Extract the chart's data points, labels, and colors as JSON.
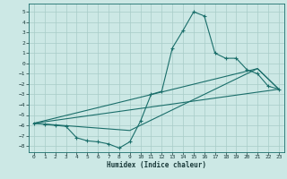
{
  "xlabel": "Humidex (Indice chaleur)",
  "bg_color": "#cce8e5",
  "line_color": "#1a6e6a",
  "grid_color": "#a8ccc8",
  "xlim": [
    -0.5,
    23.5
  ],
  "ylim": [
    -8.6,
    5.8
  ],
  "yticks": [
    5,
    4,
    3,
    2,
    1,
    0,
    -1,
    -2,
    -3,
    -4,
    -5,
    -6,
    -7,
    -8
  ],
  "xticks": [
    0,
    1,
    2,
    3,
    4,
    5,
    6,
    7,
    8,
    9,
    10,
    11,
    12,
    13,
    14,
    15,
    16,
    17,
    18,
    19,
    20,
    21,
    22,
    23
  ],
  "series1_x": [
    0,
    1,
    2,
    3,
    4,
    5,
    6,
    7,
    8,
    9,
    10,
    11,
    12,
    13,
    14,
    15,
    16,
    17,
    18,
    19,
    20,
    21,
    22,
    23
  ],
  "series1_y": [
    -5.8,
    -5.9,
    -6.0,
    -6.1,
    -7.2,
    -7.5,
    -7.6,
    -7.8,
    -8.2,
    -7.6,
    -5.6,
    -3.0,
    -2.7,
    1.5,
    3.2,
    5.0,
    4.6,
    1.0,
    0.5,
    0.5,
    -0.6,
    -1.0,
    -2.2,
    -2.5
  ],
  "line2_x": [
    0,
    23
  ],
  "line2_y": [
    -5.8,
    -2.5
  ],
  "line3_x": [
    0,
    21,
    23
  ],
  "line3_y": [
    -5.8,
    -0.5,
    -2.5
  ],
  "line4_x": [
    0,
    9,
    21,
    23
  ],
  "line4_y": [
    -5.8,
    -6.5,
    -0.5,
    -2.5
  ]
}
